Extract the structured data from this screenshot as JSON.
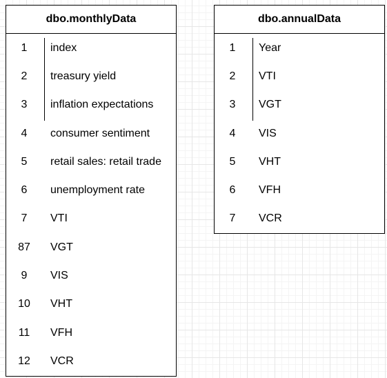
{
  "tables": [
    {
      "title": "dbo.monthlyData",
      "rows": [
        {
          "num": "1",
          "name": "index"
        },
        {
          "num": "2",
          "name": "treasury yield"
        },
        {
          "num": "3",
          "name": "inflation expectations"
        },
        {
          "num": "4",
          "name": "consumer sentiment"
        },
        {
          "num": "5",
          "name": "retail sales: retail trade"
        },
        {
          "num": "6",
          "name": "unemployment rate"
        },
        {
          "num": "7",
          "name": "VTI"
        },
        {
          "num": "87",
          "name": "VGT"
        },
        {
          "num": "9",
          "name": "VIS"
        },
        {
          "num": "10",
          "name": "VHT"
        },
        {
          "num": "11",
          "name": "VFH"
        },
        {
          "num": "12",
          "name": "VCR"
        }
      ]
    },
    {
      "title": "dbo.annualData",
      "rows": [
        {
          "num": "1",
          "name": "Year"
        },
        {
          "num": "2",
          "name": "VTI"
        },
        {
          "num": "3",
          "name": "VGT"
        },
        {
          "num": "4",
          "name": "VIS"
        },
        {
          "num": "5",
          "name": "VHT"
        },
        {
          "num": "6",
          "name": "VFH"
        },
        {
          "num": "7",
          "name": "VCR"
        }
      ]
    }
  ]
}
